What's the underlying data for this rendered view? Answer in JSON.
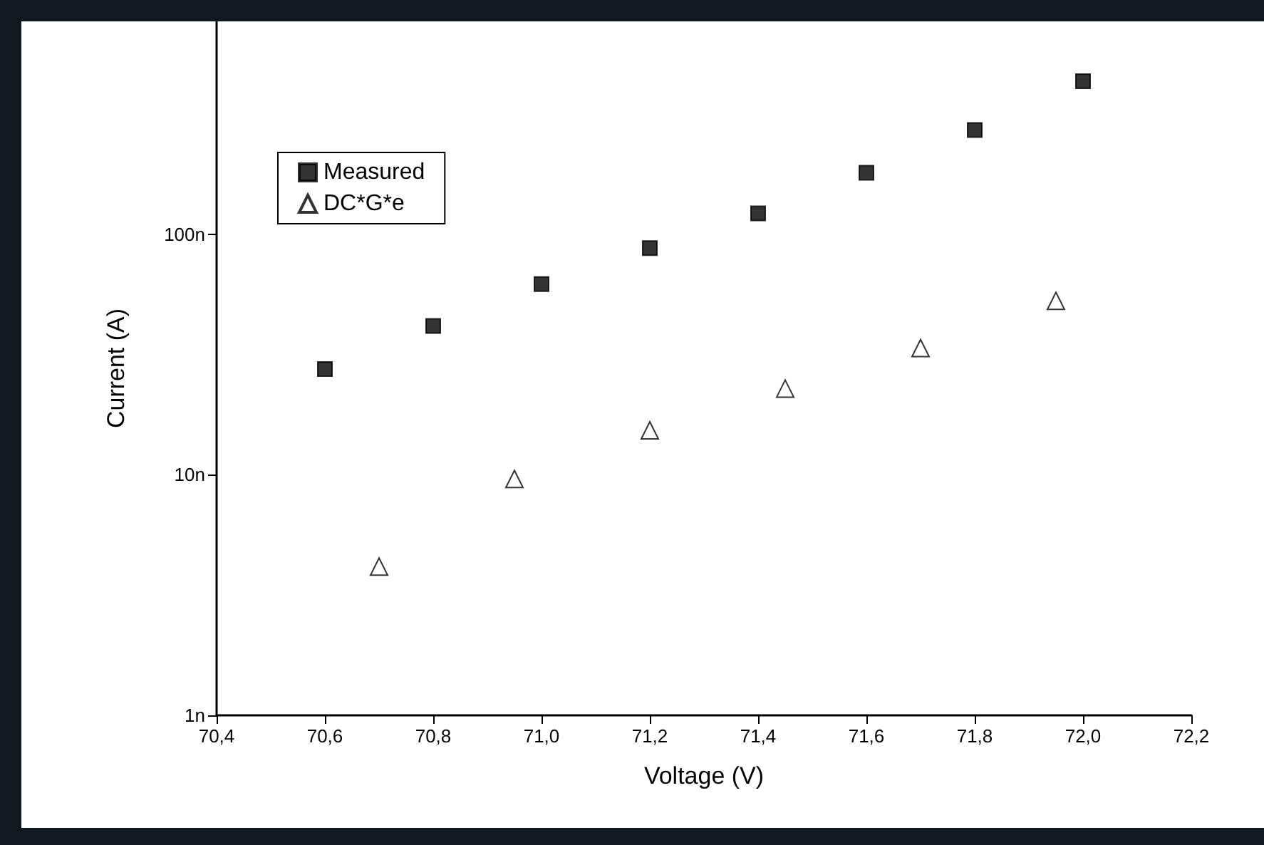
{
  "chart_data": {
    "type": "scatter",
    "xlabel": "Voltage (V)",
    "ylabel": "Current (A)",
    "log": "y",
    "legend": "top left",
    "grid": false,
    "xlim": [
      70.4,
      72.2
    ],
    "xticks": [
      {
        "value": 70.4,
        "label": "70,4"
      },
      {
        "value": 70.6,
        "label": "70,6"
      },
      {
        "value": 70.8,
        "label": "70,8"
      },
      {
        "value": 71.0,
        "label": "71,0"
      },
      {
        "value": 71.2,
        "label": "71,2"
      },
      {
        "value": 71.4,
        "label": "71,4"
      },
      {
        "value": 71.6,
        "label": "71,6"
      },
      {
        "value": 71.8,
        "label": "71,8"
      },
      {
        "value": 72.0,
        "label": "72,0"
      },
      {
        "value": 72.2,
        "label": "72,2"
      }
    ],
    "ylim": [
      1,
      766
    ],
    "yticks": [
      {
        "value": 1,
        "label": "1n"
      },
      {
        "value": 10,
        "label": "10n"
      },
      {
        "value": 100,
        "label": "100n"
      }
    ],
    "series": [
      {
        "name": "Measured",
        "color": "#000000",
        "marker": "square",
        "x": [
          70.6,
          70.8,
          71.0,
          71.2,
          71.4,
          71.6,
          71.8,
          72.0
        ],
        "values": [
          27.5,
          41.5,
          62,
          87.5,
          122,
          180,
          271,
          432
        ]
      },
      {
        "name": "DC*G*e",
        "color": "#000000",
        "marker": "triangle",
        "x": [
          70.7,
          70.95,
          71.2,
          71.45,
          71.7,
          71.95
        ],
        "values": [
          4.15,
          9.6,
          15.3,
          22.8,
          33.6,
          52.8
        ]
      }
    ]
  }
}
